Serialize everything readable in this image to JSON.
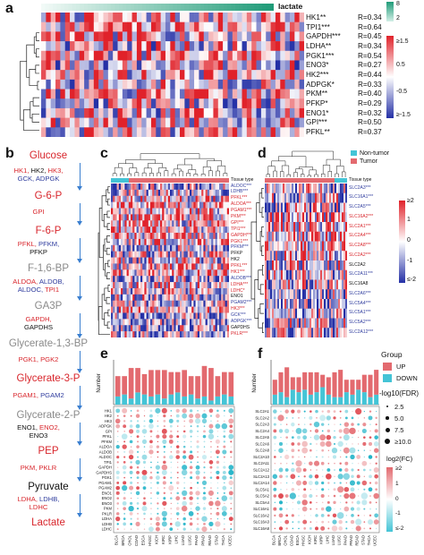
{
  "panels": [
    "a",
    "b",
    "c",
    "d",
    "e",
    "f"
  ],
  "panel_a": {
    "header": "lactate",
    "genes": [
      {
        "name": "HK1**",
        "r": "R=0.34",
        "color": "#111111"
      },
      {
        "name": "TPI1***",
        "r": "R=0.64",
        "color": "#111111"
      },
      {
        "name": "GAPDH***",
        "r": "R=0.45",
        "color": "#111111"
      },
      {
        "name": "LDHA**",
        "r": "R=0.34",
        "color": "#111111"
      },
      {
        "name": "PGK1***",
        "r": "R=0.54",
        "color": "#111111"
      },
      {
        "name": "ENO3*",
        "r": "R=0.27",
        "color": "#111111"
      },
      {
        "name": "HK2***",
        "r": "R=0.44",
        "color": "#111111"
      },
      {
        "name": "ADPGK*",
        "r": "R=0.33",
        "color": "#111111"
      },
      {
        "name": "PKM**",
        "r": "R=0.40",
        "color": "#111111"
      },
      {
        "name": "PFKP*",
        "r": "R=0.29",
        "color": "#111111"
      },
      {
        "name": "ENO1*",
        "r": "R=0.32",
        "color": "#111111"
      },
      {
        "name": "GPI***",
        "r": "R=0.50",
        "color": "#111111"
      },
      {
        "name": "PFKL**",
        "r": "R=0.37",
        "color": "#111111"
      }
    ],
    "legend_top": {
      "max": "8",
      "min": "2"
    },
    "legend_bottom": {
      "labels": [
        "≥1.5",
        "0.5",
        "-0.5",
        "≥-1.5"
      ]
    }
  },
  "pathway": {
    "nodes": [
      {
        "text": "Glucose",
        "color": "#d8262c"
      },
      {
        "text": "G-6-P",
        "color": "#d8262c"
      },
      {
        "text": "F-6-P",
        "color": "#d8262c"
      },
      {
        "text": "F-1,6-BP",
        "color": "#8a8a8a"
      },
      {
        "text": "GA3P",
        "color": "#8a8a8a"
      },
      {
        "text": "Glycerate-1,3-BP",
        "color": "#8a8a8a"
      },
      {
        "text": "Glycerate-3-P",
        "color": "#d8262c"
      },
      {
        "text": "Glycerate-2-P",
        "color": "#8a8a8a"
      },
      {
        "text": "PEP",
        "color": "#d8262c"
      },
      {
        "text": "Pyruvate",
        "color": "#111111"
      },
      {
        "text": "Lactate",
        "color": "#d8262c"
      }
    ],
    "enzymes": [
      {
        "segments": [
          {
            "t": "HK1, ",
            "c": "#d8262c"
          },
          {
            "t": "HK2, ",
            "c": "#111111"
          },
          {
            "t": "HK3,",
            "c": "#d8262c"
          }
        ],
        "segments2": [
          {
            "t": "GCK, ",
            "c": "#2f3c9e"
          },
          {
            "t": "ADPGK",
            "c": "#2f3c9e"
          }
        ]
      },
      {
        "segments": [
          {
            "t": "GPI",
            "c": "#d8262c"
          }
        ],
        "segments2": []
      },
      {
        "segments": [
          {
            "t": "PFKL, ",
            "c": "#d8262c"
          },
          {
            "t": "PFKM,",
            "c": "#2f3c9e"
          }
        ],
        "segments2": [
          {
            "t": "PFKP",
            "c": "#111111"
          }
        ]
      },
      {
        "segments": [
          {
            "t": "ALDOA, ",
            "c": "#d8262c"
          },
          {
            "t": "ALDOB,",
            "c": "#2f3c9e"
          }
        ],
        "segments2": [
          {
            "t": "ALDOC, ",
            "c": "#2f3c9e"
          },
          {
            "t": "TPI1",
            "c": "#d8262c"
          }
        ]
      },
      {
        "segments": [
          {
            "t": "GAPDH,",
            "c": "#d8262c"
          }
        ],
        "segments2": [
          {
            "t": "GAPDHS",
            "c": "#111111"
          }
        ]
      },
      {
        "segments": [
          {
            "t": "PGK1, PGK2",
            "c": "#d8262c"
          }
        ],
        "segments2": []
      },
      {
        "segments": [
          {
            "t": "PGAM1, ",
            "c": "#d8262c"
          },
          {
            "t": "PGAM2",
            "c": "#2f3c9e"
          }
        ],
        "segments2": []
      },
      {
        "segments": [
          {
            "t": "ENO1, ",
            "c": "#111111"
          },
          {
            "t": "ENO2,",
            "c": "#d8262c"
          }
        ],
        "segments2": [
          {
            "t": "ENO3",
            "c": "#111111"
          }
        ]
      },
      {
        "segments": [
          {
            "t": "PKM, PKLR",
            "c": "#d8262c"
          }
        ],
        "segments2": []
      },
      {
        "segments": [
          {
            "t": "LDHA, ",
            "c": "#d8262c"
          },
          {
            "t": "LDHB,",
            "c": "#2f3c9e"
          }
        ],
        "segments2": [
          {
            "t": "LDHC",
            "c": "#d8262c"
          }
        ]
      }
    ]
  },
  "panel_c": {
    "title": "Tissue type",
    "genes": [
      {
        "name": "ALDOC***",
        "color": "#2f3c9e"
      },
      {
        "name": "LDHB***",
        "color": "#2f3c9e"
      },
      {
        "name": "PFKL***",
        "color": "#d8262c"
      },
      {
        "name": "ALDOA***",
        "color": "#d8262c"
      },
      {
        "name": "PGAM1***",
        "color": "#d8262c"
      },
      {
        "name": "PKM***",
        "color": "#d8262c"
      },
      {
        "name": "GPI***",
        "color": "#d8262c"
      },
      {
        "name": "TPI1***",
        "color": "#d8262c"
      },
      {
        "name": "GAPDH***",
        "color": "#d8262c"
      },
      {
        "name": "PGK1***",
        "color": "#d8262c"
      },
      {
        "name": "PFKM***",
        "color": "#2f3c9e"
      },
      {
        "name": "PFKP",
        "color": "#111111"
      },
      {
        "name": "HK2",
        "color": "#111111"
      },
      {
        "name": "PFKL***",
        "color": "#d8262c"
      },
      {
        "name": "HK1***",
        "color": "#d8262c"
      },
      {
        "name": "ALDOB***",
        "color": "#2f3c9e"
      },
      {
        "name": "LDHA***",
        "color": "#d8262c"
      },
      {
        "name": "LDHC*",
        "color": "#d8262c"
      },
      {
        "name": "ENO1",
        "color": "#111111"
      },
      {
        "name": "PGAM2***",
        "color": "#2f3c9e"
      },
      {
        "name": "HK3***",
        "color": "#d8262c"
      },
      {
        "name": "GCK***",
        "color": "#2f3c9e"
      },
      {
        "name": "ADPGK***",
        "color": "#2f3c9e"
      },
      {
        "name": "GAPDHS",
        "color": "#111111"
      },
      {
        "name": "PKLR***",
        "color": "#d8262c"
      }
    ]
  },
  "panel_d": {
    "title": "Tissue type",
    "legend_groups": [
      "Non-tumor",
      "Tumor"
    ],
    "legend_scale": [
      "≥2",
      "1",
      "0",
      "-1",
      "≤-2"
    ],
    "genes": [
      {
        "name": "SLC2A3***",
        "color": "#2f3c9e"
      },
      {
        "name": "SLC16A1***",
        "color": "#2f3c9e"
      },
      {
        "name": "SLC2A5***",
        "color": "#2f3c9e"
      },
      {
        "name": "SLC16A2***",
        "color": "#d8262c"
      },
      {
        "name": "SLC2A1***",
        "color": "#d8262c"
      },
      {
        "name": "SLC2A4***",
        "color": "#d8262c"
      },
      {
        "name": "SLC2A8***",
        "color": "#d8262c"
      },
      {
        "name": "SLC2A2***",
        "color": "#d8262c"
      },
      {
        "name": "SLC2A2",
        "color": "#111111"
      },
      {
        "name": "SLC2A11***",
        "color": "#2f3c9e"
      },
      {
        "name": "SLC16A8",
        "color": "#111111"
      },
      {
        "name": "SLC2A6***",
        "color": "#2f3c9e"
      },
      {
        "name": "SLC5A4***",
        "color": "#2f3c9e"
      },
      {
        "name": "SLC5A1***",
        "color": "#2f3c9e"
      },
      {
        "name": "SLC5A2***",
        "color": "#2f3c9e"
      },
      {
        "name": "SLC2A12***",
        "color": "#2f3c9e"
      }
    ]
  },
  "panel_e": {
    "ylabel": "Number",
    "genes": [
      "HK1",
      "HK2",
      "HK3",
      "ADPGK",
      "GPI",
      "PFKL",
      "PFKM",
      "ALDOA",
      "ALDOB",
      "ALDOC",
      "TPI1",
      "GAPDH",
      "GAPDHS",
      "PGK1",
      "PGAM1",
      "PGAM2",
      "ENO1",
      "ENO2",
      "ENO3",
      "PKM",
      "PKLR",
      "LDHA",
      "LDHB",
      "LDHC"
    ],
    "cancers": [
      "BLCA",
      "BRCA",
      "CHOL",
      "COAD",
      "ESCA",
      "HNSC",
      "KICH",
      "KIRC",
      "KIRP",
      "LIHC",
      "LUAD",
      "LUSC",
      "PAAD",
      "PRAD",
      "READ",
      "STAD",
      "THCA",
      "UCEC"
    ],
    "up": [
      10,
      9,
      15,
      12,
      10,
      13,
      12,
      14,
      11,
      10,
      13,
      9,
      11,
      15,
      16,
      10,
      11,
      12
    ],
    "down": [
      4,
      5,
      3,
      6,
      5,
      4,
      5,
      3,
      5,
      6,
      4,
      5,
      3,
      4,
      2,
      4,
      5,
      4
    ],
    "ymax": 22
  },
  "panel_f": {
    "ylabel": "Number",
    "genes": [
      "SLC2A1",
      "SLC2A2",
      "SLC2A3",
      "SLC2A4",
      "SLC2A5",
      "SLC2A6",
      "SLC2A8",
      "SLC2A10",
      "SLC2A11",
      "SLC2A12",
      "SLC2A13",
      "SLC2A14",
      "SLC5A1",
      "SLC5A2",
      "SLC5A4",
      "SLC16A1",
      "SLC16A2",
      "SLC16A3",
      "SLC16A8"
    ],
    "cancers": [
      "BLCA",
      "BRCA",
      "CHOL",
      "COAD",
      "ESCA",
      "HNSC",
      "KICH",
      "KIRC",
      "KIRP",
      "LIHC",
      "LUAD",
      "LUSC",
      "PAAD",
      "PRAD",
      "READ",
      "STAD",
      "THCA",
      "UCEC"
    ],
    "up": [
      6,
      8,
      12,
      5,
      6,
      7,
      9,
      8,
      5,
      7,
      10,
      11,
      5,
      6,
      4,
      7,
      9,
      10
    ],
    "down": [
      4,
      5,
      3,
      6,
      5,
      6,
      4,
      5,
      7,
      4,
      3,
      3,
      5,
      4,
      6,
      5,
      3,
      4
    ],
    "ymax": 18,
    "legend": {
      "group_title": "Group",
      "groups": [
        {
          "label": "UP",
          "color": "#e36a6f"
        },
        {
          "label": "DOWN",
          "color": "#44c4d6"
        }
      ],
      "size_title": "-log10(FDR)",
      "sizes": [
        "2.5",
        "5.0",
        "7.5",
        "≥10.0"
      ],
      "fc_title": "log2(FC)",
      "fc_scale": [
        "≥2",
        "1",
        "0",
        "-1",
        "≤-2"
      ]
    }
  },
  "colors": {
    "red": "#d8262c",
    "blue": "#2f3c9e",
    "teal": "#2ba88a",
    "up": "#e36a6f",
    "down": "#44c4d6"
  }
}
